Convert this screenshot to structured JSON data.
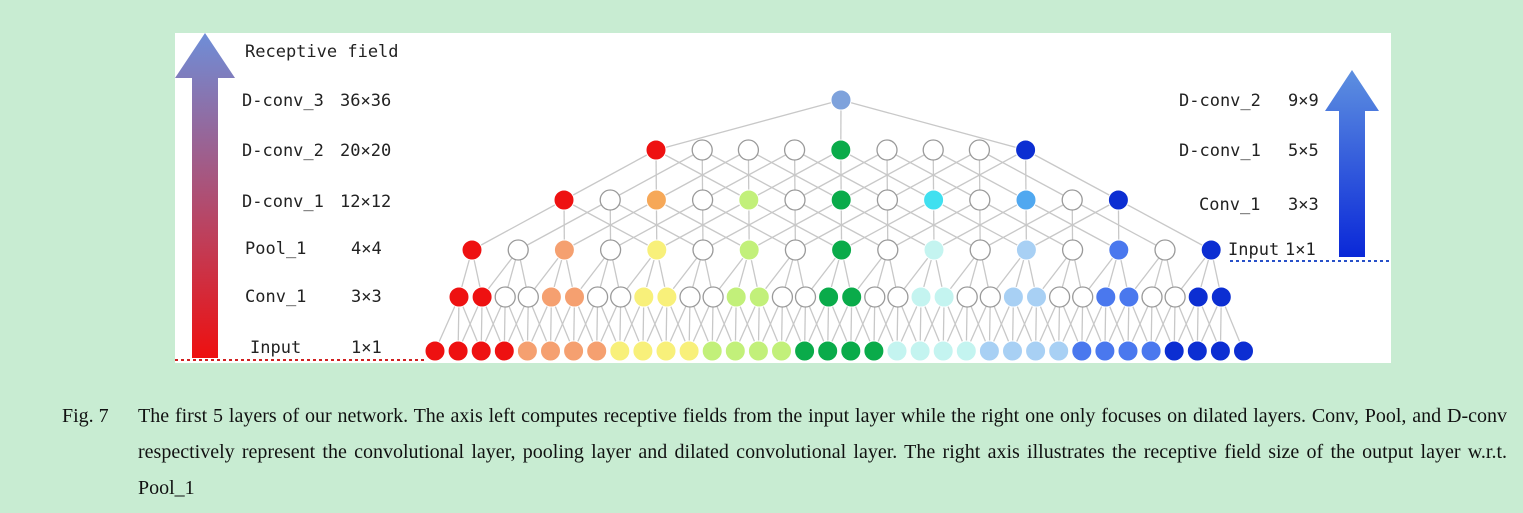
{
  "left_axis": {
    "title": "Receptive field",
    "rows": [
      {
        "name": "D-conv_3",
        "size": "36×36"
      },
      {
        "name": "D-conv_2",
        "size": "20×20"
      },
      {
        "name": "D-conv_1",
        "size": "12×12"
      },
      {
        "name": "Pool_1",
        "size": "4×4"
      },
      {
        "name": "Conv_1",
        "size": "3×3"
      },
      {
        "name": "Input",
        "size": "1×1"
      }
    ]
  },
  "right_axis": {
    "rows": [
      {
        "name": "D-conv_2",
        "size": "9×9"
      },
      {
        "name": "D-conv_1",
        "size": "5×5"
      },
      {
        "name": "Conv_1",
        "size": "3×3"
      },
      {
        "name": "Input",
        "size": "1×1"
      }
    ]
  },
  "colors": {
    "red": "#ee1111",
    "orange": "#f5a070",
    "gold": "#f6a858",
    "yellow": "#f8f07a",
    "lime": "#c2f07a",
    "green": "#0aab4a",
    "cyan": "#40e0f0",
    "palecyan": "#c4f4f0",
    "lightblue": "#a8d0f4",
    "skyblue": "#50a8f0",
    "blue": "#4a78ee",
    "navy": "#0c2ed2",
    "steel": "#7ea2dc",
    "hollow": "#ffffff",
    "edge": "#c8c8c8",
    "left_arrow_top": "#6e8ed8",
    "left_arrow_bottom": "#ee1010",
    "right_arrow_top": "#5e90e0",
    "right_arrow_bottom": "#0a28d8",
    "baseline": "#d02020",
    "baseline_right": "#2850c8"
  },
  "layers": [
    {
      "id": "input",
      "pattern": [
        "red",
        "red",
        "red",
        "red",
        "orange",
        "orange",
        "orange",
        "orange",
        "yellow",
        "yellow",
        "yellow",
        "yellow",
        "lime",
        "lime",
        "lime",
        "lime",
        "green",
        "green",
        "green",
        "green",
        "palecyan",
        "palecyan",
        "palecyan",
        "palecyan",
        "lightblue",
        "lightblue",
        "lightblue",
        "lightblue",
        "blue",
        "blue",
        "blue",
        "blue",
        "navy",
        "navy",
        "navy",
        "navy"
      ]
    },
    {
      "id": "conv1",
      "pattern": [
        "red",
        "red",
        "hollow",
        "hollow",
        "orange",
        "orange",
        "hollow",
        "hollow",
        "yellow",
        "yellow",
        "hollow",
        "hollow",
        "lime",
        "lime",
        "hollow",
        "hollow",
        "green",
        "green",
        "hollow",
        "hollow",
        "palecyan",
        "palecyan",
        "hollow",
        "hollow",
        "lightblue",
        "lightblue",
        "hollow",
        "hollow",
        "blue",
        "blue",
        "hollow",
        "hollow",
        "navy",
        "navy"
      ]
    },
    {
      "id": "pool1",
      "pattern": [
        "red",
        "hollow",
        "orange",
        "hollow",
        "yellow",
        "hollow",
        "lime",
        "hollow",
        "green",
        "hollow",
        "palecyan",
        "hollow",
        "lightblue",
        "hollow",
        "blue",
        "hollow",
        "navy"
      ]
    },
    {
      "id": "dconv1",
      "pattern": [
        "red",
        "hollow",
        "gold",
        "hollow",
        "lime",
        "hollow",
        "green",
        "hollow",
        "cyan",
        "hollow",
        "skyblue",
        "hollow",
        "navy"
      ]
    },
    {
      "id": "dconv2",
      "pattern": [
        "red",
        "hollow",
        "hollow",
        "hollow",
        "green",
        "hollow",
        "hollow",
        "hollow",
        "navy"
      ]
    },
    {
      "id": "dconv3",
      "pattern": [
        "steel"
      ]
    }
  ],
  "caption": {
    "fig_num": "Fig.  7",
    "text": "The first 5 layers of our network. The axis left computes receptive fields from the input layer while the right one only focuses on dilated layers. Conv, Pool, and D-conv respectively represent the convolutional layer, pooling layer and dilated convolutional layer. The right axis illustrates the receptive field size of the output layer w.r.t. Pool_1"
  }
}
